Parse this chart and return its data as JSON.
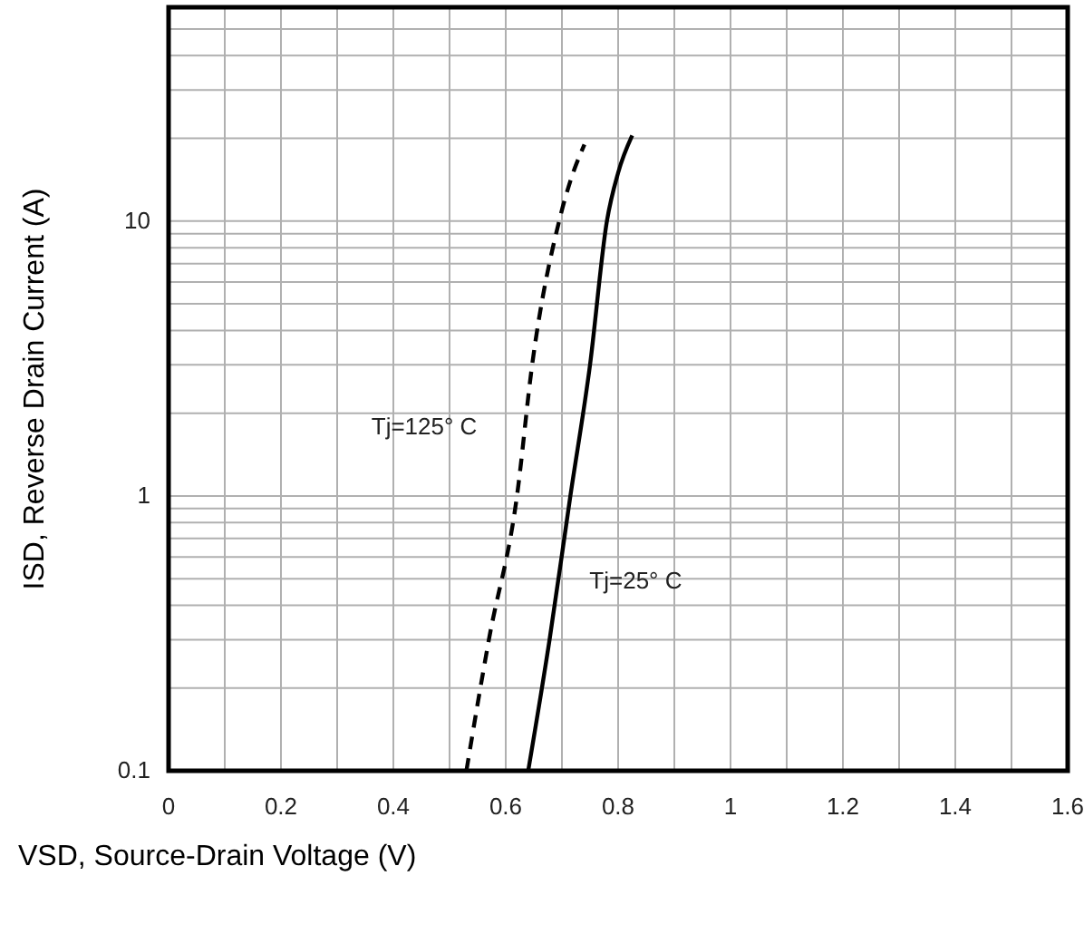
{
  "chart_data": {
    "type": "line",
    "xlabel": "VSD, Source-Drain Voltage (V)",
    "ylabel": "ISD, Reverse Drain Current (A)",
    "log": "y",
    "grid": true,
    "marker": "none",
    "xlim": [
      0,
      1.6
    ],
    "ylim": [
      0.1,
      60
    ],
    "xticks": [
      0,
      0.2,
      0.4,
      0.6,
      0.8,
      1,
      1.2,
      1.4,
      1.6
    ],
    "yticks": [
      0.1,
      1,
      10
    ],
    "series": [
      {
        "name": "Tj=125° C",
        "color": "#000000",
        "line_style": "dashed",
        "x": [
          0.53,
          0.57,
          0.62,
          0.647,
          0.695,
          0.715,
          0.74
        ],
        "values": [
          0.1,
          0.3,
          1,
          3,
          10,
          14,
          19
        ]
      },
      {
        "name": "Tj=25° C",
        "color": "#000000",
        "line_style": "solid",
        "x": [
          0.64,
          0.678,
          0.715,
          0.75,
          0.78,
          0.8,
          0.825
        ],
        "values": [
          0.1,
          0.3,
          1,
          3,
          10,
          15,
          20.5
        ]
      }
    ]
  }
}
